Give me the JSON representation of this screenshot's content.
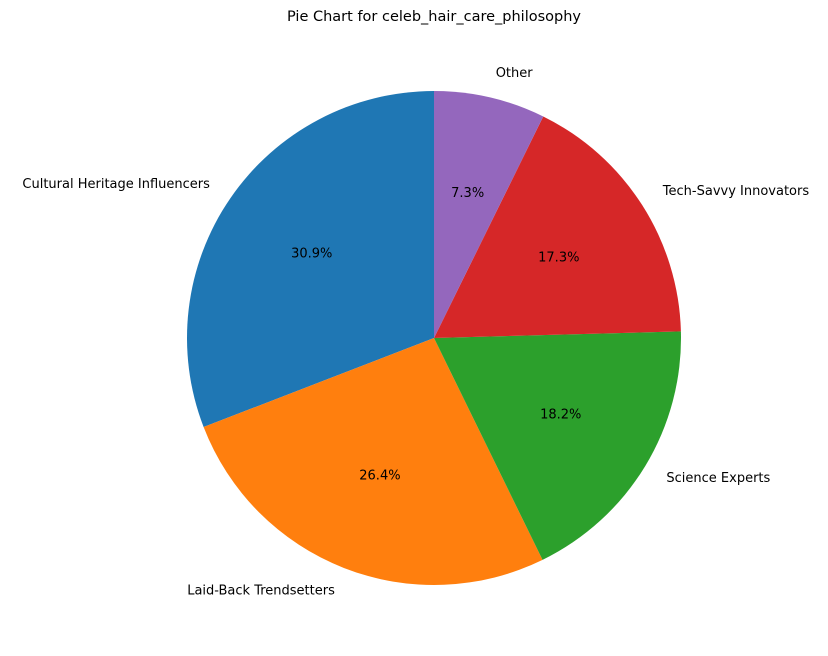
{
  "chart_data": {
    "type": "pie",
    "title": "Pie Chart for celeb_hair_care_philosophy",
    "start_angle_deg": 90,
    "direction": "counterclockwise",
    "categories": [
      "Cultural Heritage Influencers",
      "Laid-Back Trendsetters",
      "Science Experts",
      "Tech-Savvy Innovators",
      "Other"
    ],
    "values": [
      30.9,
      26.4,
      18.2,
      17.3,
      7.3
    ],
    "percent_labels": [
      "30.9%",
      "26.4%",
      "18.2%",
      "17.3%",
      "7.3%"
    ],
    "colors": [
      "#1f77b4",
      "#ff7f0e",
      "#2ca02c",
      "#d62728",
      "#9467bd"
    ]
  }
}
